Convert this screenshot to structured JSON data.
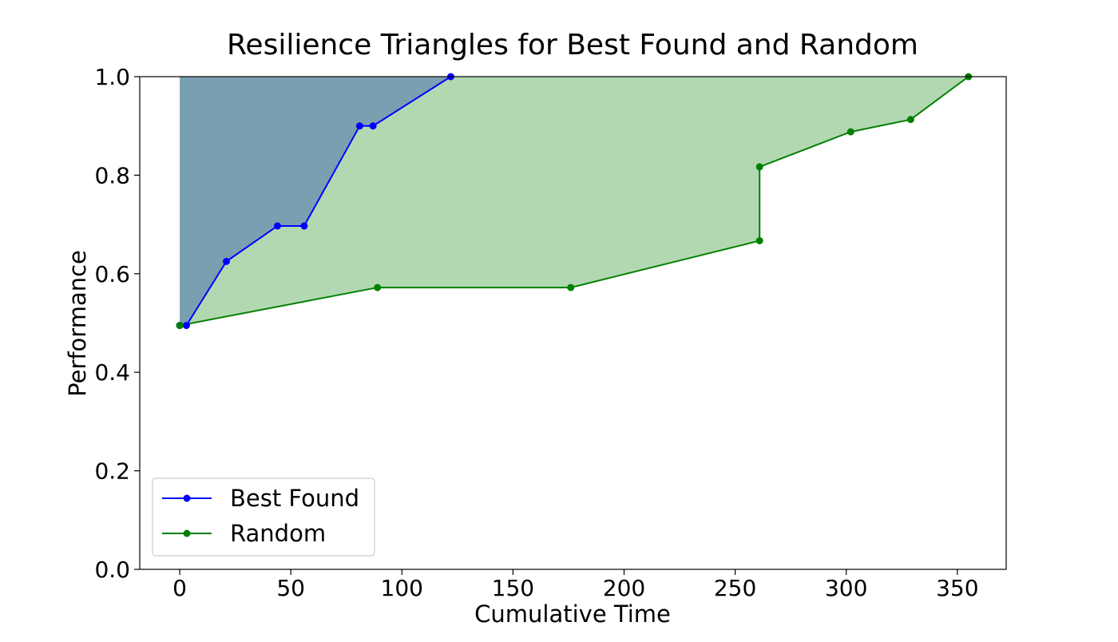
{
  "chart_data": {
    "type": "line",
    "title": "Resilience Triangles for Best Found and Random",
    "xlabel": "Cumulative Time",
    "ylabel": "Performance",
    "xlim": [
      -18,
      372
    ],
    "ylim": [
      0.0,
      1.0
    ],
    "xticks": [
      0,
      50,
      100,
      150,
      200,
      250,
      300,
      350
    ],
    "yticks": [
      0.0,
      0.2,
      0.4,
      0.6,
      0.8,
      1.0
    ],
    "ytick_labels": [
      "0.0",
      "0.2",
      "0.4",
      "0.6",
      "0.8",
      "1.0"
    ],
    "grid": false,
    "legend_position": "lower-left",
    "series": [
      {
        "name": "Best Found",
        "color": "#0000ff",
        "fill_color": "#7a9fb0",
        "x": [
          0,
          3,
          21,
          44,
          56,
          81,
          87,
          122
        ],
        "y": [
          0.495,
          0.495,
          0.625,
          0.697,
          0.697,
          0.9,
          0.9,
          1.0
        ]
      },
      {
        "name": "Random",
        "color": "#008000",
        "fill_color": "#b2d8b2",
        "x": [
          0,
          89,
          176,
          261,
          261,
          302,
          329,
          355
        ],
        "y": [
          0.495,
          0.572,
          0.572,
          0.667,
          0.817,
          0.888,
          0.913,
          1.0
        ]
      }
    ]
  }
}
